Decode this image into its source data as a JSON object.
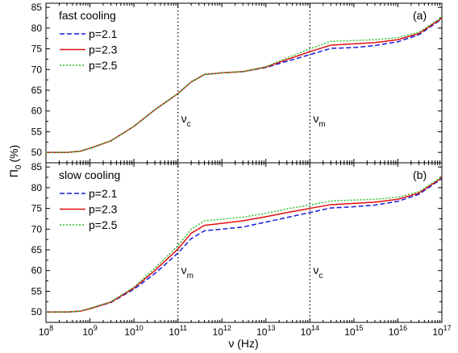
{
  "chart_data": [
    {
      "type": "line",
      "panel_tag": "(a)",
      "title": "fast cooling",
      "xscale": "log",
      "xlim": [
        100000000.0,
        1e+17
      ],
      "ylim": [
        47.5,
        86
      ],
      "yticks": [
        50,
        55,
        60,
        65,
        70,
        75,
        80,
        85
      ],
      "xticks": [
        100000000.0,
        1000000000.0,
        10000000000.0,
        100000000000.0,
        1000000000000.0,
        10000000000000.0,
        100000000000000.0,
        1000000000000000.0,
        1e+16,
        1e+17
      ],
      "vlines": [
        {
          "x": 100000000000.0,
          "label": "ν",
          "sub": "c"
        },
        {
          "x": 100000000000000.0,
          "label": "ν",
          "sub": "m"
        }
      ],
      "legend_position": "top-left",
      "series": [
        {
          "name": "p=2.1",
          "color": "#1a1adb",
          "dash": "dashed",
          "x": [
            100000000.0,
            300000000.0,
            600000000.0,
            1000000000.0,
            3000000000.0,
            10000000000.0,
            30000000000.0,
            100000000000.0,
            200000000000.0,
            400000000000.0,
            1000000000000.0,
            3000000000000.0,
            10000000000000.0,
            30000000000000.0,
            100000000000000.0,
            300000000000000.0,
            1000000000000000.0,
            3000000000000000.0,
            1e+16,
            3e+16,
            1e+17
          ],
          "y": [
            50,
            50,
            50.3,
            51,
            52.8,
            56.3,
            60.3,
            64.2,
            67,
            68.8,
            69.2,
            69.5,
            70.5,
            72,
            73.6,
            75.1,
            75.3,
            75.8,
            76.7,
            78.4,
            82.2
          ]
        },
        {
          "name": "p=2.3",
          "color": "#e01010",
          "dash": "solid",
          "x": [
            100000000.0,
            300000000.0,
            600000000.0,
            1000000000.0,
            3000000000.0,
            10000000000.0,
            30000000000.0,
            100000000000.0,
            200000000000.0,
            400000000000.0,
            1000000000000.0,
            3000000000000.0,
            10000000000000.0,
            30000000000000.0,
            100000000000000.0,
            300000000000000.0,
            1000000000000000.0,
            3000000000000000.0,
            1e+16,
            3e+16,
            1e+17
          ],
          "y": [
            50,
            50,
            50.3,
            51,
            52.8,
            56.3,
            60.3,
            64.2,
            67,
            68.8,
            69.2,
            69.5,
            70.6,
            72.4,
            74.3,
            75.9,
            76.2,
            76.5,
            77.2,
            78.7,
            82.4
          ]
        },
        {
          "name": "p=2.5",
          "color": "#2fbf2f",
          "dash": "dotted",
          "x": [
            100000000.0,
            300000000.0,
            600000000.0,
            1000000000.0,
            3000000000.0,
            10000000000.0,
            30000000000.0,
            100000000000.0,
            200000000000.0,
            400000000000.0,
            1000000000000.0,
            3000000000000.0,
            10000000000000.0,
            30000000000000.0,
            100000000000000.0,
            300000000000000.0,
            1000000000000000.0,
            3000000000000000.0,
            1e+16,
            3e+16,
            1e+17
          ],
          "y": [
            50,
            50,
            50.3,
            51,
            52.8,
            56.3,
            60.3,
            64.2,
            67,
            68.8,
            69.2,
            69.5,
            70.7,
            72.8,
            75,
            76.8,
            77,
            77.2,
            77.7,
            79,
            82.6
          ]
        }
      ]
    },
    {
      "type": "line",
      "panel_tag": "(b)",
      "title": "slow cooling",
      "xscale": "log",
      "xlim": [
        100000000.0,
        1e+17
      ],
      "ylim": [
        47.5,
        86
      ],
      "yticks": [
        50,
        55,
        60,
        65,
        70,
        75,
        80,
        85
      ],
      "xticks": [
        100000000.0,
        1000000000.0,
        10000000000.0,
        100000000000.0,
        1000000000000.0,
        10000000000000.0,
        100000000000000.0,
        1000000000000000.0,
        1e+16,
        1e+17
      ],
      "xlabel": "ν (Hz)",
      "vlines": [
        {
          "x": 100000000000.0,
          "label": "ν",
          "sub": "m"
        },
        {
          "x": 100000000000000.0,
          "label": "ν",
          "sub": "c"
        }
      ],
      "legend_position": "top-left",
      "series": [
        {
          "name": "p=2.1",
          "color": "#1a1adb",
          "dash": "dashed",
          "x": [
            100000000.0,
            300000000.0,
            600000000.0,
            1000000000.0,
            3000000000.0,
            10000000000.0,
            30000000000.0,
            100000000000.0,
            200000000000.0,
            400000000000.0,
            1000000000000.0,
            3000000000000.0,
            10000000000000.0,
            30000000000000.0,
            100000000000000.0,
            300000000000000.0,
            1000000000000000.0,
            3000000000000000.0,
            1e+16,
            3e+16,
            1e+17
          ],
          "y": [
            50,
            50,
            50.2,
            50.8,
            52.3,
            55.5,
            59.3,
            64.2,
            67.7,
            69.6,
            70,
            70.5,
            71.7,
            72.8,
            74,
            75.1,
            75.4,
            75.8,
            76.7,
            78.4,
            82.2
          ]
        },
        {
          "name": "p=2.3",
          "color": "#e01010",
          "dash": "solid",
          "x": [
            100000000.0,
            300000000.0,
            600000000.0,
            1000000000.0,
            3000000000.0,
            10000000000.0,
            30000000000.0,
            100000000000.0,
            200000000000.0,
            400000000000.0,
            1000000000000.0,
            3000000000000.0,
            10000000000000.0,
            30000000000000.0,
            100000000000000.0,
            300000000000000.0,
            1000000000000000.0,
            3000000000000000.0,
            1e+16,
            3e+16,
            1e+17
          ],
          "y": [
            50,
            50,
            50.2,
            50.8,
            52.4,
            55.8,
            60,
            65.2,
            69,
            70.9,
            71.4,
            72,
            73,
            74,
            75,
            75.9,
            76.2,
            76.5,
            77.2,
            78.7,
            82.4
          ]
        },
        {
          "name": "p=2.5",
          "color": "#2fbf2f",
          "dash": "dotted",
          "x": [
            100000000.0,
            300000000.0,
            600000000.0,
            1000000000.0,
            3000000000.0,
            10000000000.0,
            30000000000.0,
            100000000000.0,
            200000000000.0,
            400000000000.0,
            1000000000000.0,
            3000000000000.0,
            10000000000000.0,
            30000000000000.0,
            100000000000000.0,
            300000000000000.0,
            1000000000000000.0,
            3000000000000000.0,
            1e+16,
            3e+16,
            1e+17
          ],
          "y": [
            50,
            50,
            50.2,
            50.9,
            52.5,
            56,
            60.6,
            66,
            70,
            72,
            72.4,
            72.9,
            73.8,
            74.9,
            75.8,
            76.8,
            77,
            77.2,
            77.7,
            79,
            82.6
          ]
        }
      ]
    }
  ],
  "shared": {
    "ylabel_symbol": "Π",
    "ylabel_sub": "0",
    "ylabel_unit": "(%)"
  }
}
